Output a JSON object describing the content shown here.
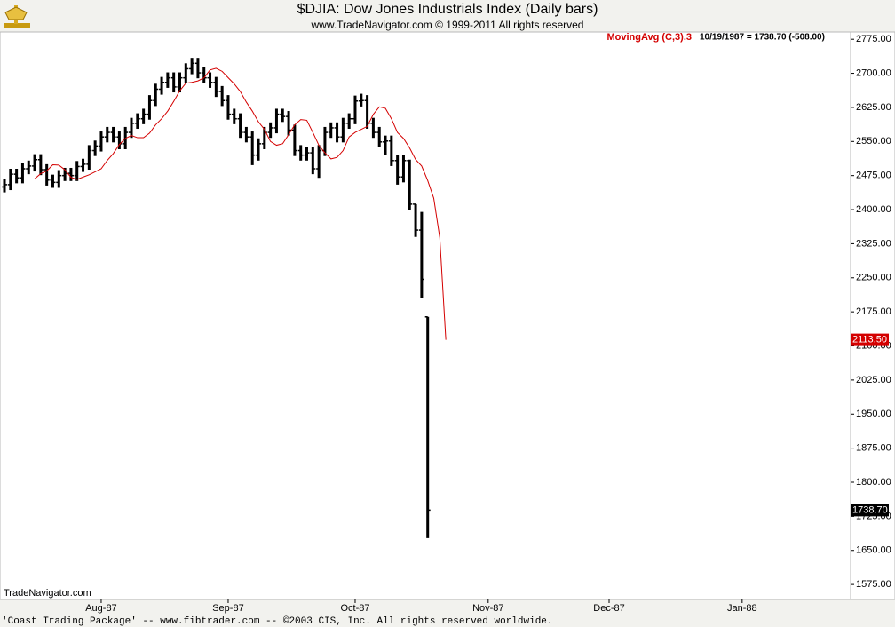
{
  "chart_data": {
    "type": "ohlc",
    "title": "$DJIA:  Dow Jones Industrials Index  (Daily bars)",
    "subtitle": "www.TradeNavigator.com © 1999-2011 All rights reserved",
    "status_text": "10/19/1987 = 1738.70 (-508.00)",
    "watermark": "TradeNavigator.com",
    "footer": "'Coast Trading Package' -- www.fibtrader.com -- ©2003 CIS, Inc. All rights reserved worldwide.",
    "categories": [
      null,
      null,
      null,
      null,
      null,
      null,
      null,
      null,
      null,
      null,
      null,
      null,
      null,
      null,
      null,
      null,
      "Aug-87",
      null,
      null,
      null,
      null,
      null,
      null,
      null,
      null,
      null,
      null,
      null,
      null,
      null,
      null,
      null,
      null,
      null,
      null,
      null,
      null,
      "Sep-87",
      null,
      null,
      null,
      null,
      null,
      null,
      null,
      null,
      null,
      null,
      null,
      null,
      null,
      null,
      null,
      null,
      null,
      null,
      null,
      null,
      "Oct-87",
      null,
      null,
      null,
      null,
      null,
      null,
      null,
      null,
      null,
      null,
      null,
      null,
      null,
      null,
      null,
      null,
      null,
      null,
      null,
      null,
      null,
      "Nov-87",
      null,
      null,
      null,
      null,
      null,
      null,
      null,
      null,
      null,
      null,
      null,
      null,
      null,
      null,
      null,
      null,
      null,
      null,
      null,
      "Dec-87",
      null,
      null,
      null,
      null,
      null,
      null,
      null,
      null,
      null,
      null,
      null,
      null,
      null,
      null,
      null,
      null,
      null,
      null,
      null,
      null,
      null,
      "Jan-88"
    ],
    "ohlc": {
      "color": "#000000",
      "last_label": "1738.70",
      "open": [
        2450,
        2455,
        2478,
        2470,
        2490,
        2496,
        2510,
        2488,
        2465,
        2460,
        2475,
        2480,
        2475,
        2495,
        2500,
        2530,
        2540,
        2560,
        2570,
        2560,
        2545,
        2570,
        2590,
        2600,
        2610,
        2640,
        2665,
        2680,
        2690,
        2670,
        2690,
        2710,
        2722,
        2701,
        2690,
        2680,
        2660,
        2640,
        2610,
        2600,
        2570,
        2560,
        2520,
        2545,
        2570,
        2580,
        2610,
        2605,
        2575,
        2530,
        2520,
        2525,
        2490,
        2530,
        2570,
        2580,
        2560,
        2590,
        2600,
        2639,
        2640,
        2590,
        2570,
        2549,
        2551,
        2508,
        2472,
        2508,
        2412,
        2355,
        2164,
        null,
        null,
        null,
        null,
        null,
        null,
        null,
        null,
        null,
        null,
        null,
        null,
        null,
        null,
        null,
        null,
        null,
        null,
        null,
        null,
        null,
        null,
        null,
        null,
        null,
        null,
        null,
        null,
        null,
        null,
        null,
        null,
        null,
        null,
        null,
        null,
        null,
        null,
        null,
        null,
        null,
        null,
        null,
        null,
        null,
        null,
        null,
        null,
        null,
        null,
        null,
        null
      ],
      "high": [
        2467,
        2490,
        2490,
        2502,
        2508,
        2522,
        2522,
        2500,
        2477,
        2487,
        2492,
        2492,
        2507,
        2512,
        2542,
        2552,
        2572,
        2582,
        2582,
        2572,
        2582,
        2602,
        2612,
        2622,
        2652,
        2677,
        2692,
        2702,
        2702,
        2702,
        2722,
        2734,
        2734,
        2713,
        2702,
        2692,
        2672,
        2652,
        2622,
        2612,
        2582,
        2572,
        2557,
        2582,
        2592,
        2622,
        2622,
        2617,
        2587,
        2542,
        2537,
        2537,
        2542,
        2582,
        2592,
        2592,
        2602,
        2612,
        2651,
        2655,
        2652,
        2602,
        2582,
        2563,
        2563,
        2520,
        2520,
        2510,
        2412,
        2395,
        2164,
        null,
        null,
        null,
        null,
        null,
        null,
        null,
        null,
        null,
        null,
        null,
        null,
        null,
        null,
        null,
        null,
        null,
        null,
        null,
        null,
        null,
        null,
        null,
        null,
        null,
        null,
        null,
        null,
        null,
        null,
        null,
        null,
        null,
        null,
        null,
        null,
        null,
        null,
        null,
        null,
        null,
        null,
        null,
        null,
        null,
        null,
        null,
        null,
        null,
        null,
        null,
        null
      ],
      "low": [
        2438,
        2443,
        2458,
        2458,
        2478,
        2484,
        2476,
        2453,
        2448,
        2448,
        2463,
        2463,
        2463,
        2483,
        2488,
        2518,
        2528,
        2548,
        2548,
        2533,
        2533,
        2558,
        2578,
        2588,
        2598,
        2628,
        2653,
        2668,
        2658,
        2658,
        2678,
        2698,
        2689,
        2678,
        2668,
        2648,
        2628,
        2598,
        2588,
        2558,
        2548,
        2498,
        2508,
        2533,
        2558,
        2568,
        2593,
        2563,
        2518,
        2508,
        2508,
        2478,
        2470,
        2518,
        2558,
        2548,
        2548,
        2578,
        2588,
        2627,
        2578,
        2558,
        2537,
        2520,
        2496,
        2455,
        2460,
        2400,
        2340,
        2205,
        1677,
        null,
        null,
        null,
        null,
        null,
        null,
        null,
        null,
        null,
        null,
        null,
        null,
        null,
        null,
        null,
        null,
        null,
        null,
        null,
        null,
        null,
        null,
        null,
        null,
        null,
        null,
        null,
        null,
        null,
        null,
        null,
        null,
        null,
        null,
        null,
        null,
        null,
        null,
        null,
        null,
        null,
        null,
        null,
        null,
        null,
        null,
        null,
        null,
        null,
        null,
        null,
        null
      ],
      "close": [
        2455,
        2478,
        2470,
        2490,
        2496,
        2510,
        2488,
        2465,
        2460,
        2475,
        2480,
        2475,
        2495,
        2500,
        2530,
        2540,
        2560,
        2570,
        2560,
        2545,
        2570,
        2590,
        2600,
        2610,
        2640,
        2665,
        2680,
        2690,
        2670,
        2690,
        2710,
        2722,
        2701,
        2690,
        2680,
        2660,
        2640,
        2610,
        2600,
        2570,
        2560,
        2520,
        2545,
        2570,
        2580,
        2610,
        2605,
        2575,
        2530,
        2520,
        2525,
        2490,
        2530,
        2570,
        2580,
        2560,
        2590,
        2600,
        2639,
        2640,
        2590,
        2570,
        2549,
        2551,
        2508,
        2472,
        2508,
        2412,
        2355,
        2246.7,
        1738.7,
        null,
        null,
        null,
        null,
        null,
        null,
        null,
        null,
        null,
        null,
        null,
        null,
        null,
        null,
        null,
        null,
        null,
        null,
        null,
        null,
        null,
        null,
        null,
        null,
        null,
        null,
        null,
        null,
        null,
        null,
        null,
        null,
        null,
        null,
        null,
        null,
        null,
        null,
        null,
        null,
        null,
        null,
        null,
        null,
        null,
        null,
        null,
        null,
        null,
        null,
        null,
        null
      ]
    },
    "overlays": [
      {
        "type": "line",
        "name": "MovingAvg (C,3).3",
        "color": "#d40000",
        "last_label": "2113.50",
        "values": [
          null,
          null,
          null,
          null,
          null,
          2467.7,
          2479.3,
          2485.3,
          2498.7,
          2498,
          2487.7,
          2471,
          2466.7,
          2471.7,
          2476.7,
          2483.3,
          2490,
          2508.3,
          2523.3,
          2543.3,
          2556.7,
          2563.3,
          2558.3,
          2558.3,
          2568.3,
          2586.7,
          2600,
          2616.7,
          2638.3,
          2661.7,
          2678.3,
          2680,
          2683.3,
          2690,
          2707.3,
          2711,
          2704.3,
          2690.3,
          2676.7,
          2660,
          2636.7,
          2616.7,
          2593.3,
          2576.7,
          2550,
          2541.7,
          2545,
          2565,
          2586.7,
          2598.3,
          2596.7,
          2570,
          2541.7,
          2525,
          2511.7,
          2515,
          2530,
          2560,
          2570,
          2576.7,
          2583.3,
          2609.7,
          2626.3,
          2623,
          2600,
          2569.7,
          2556.7,
          2536,
          2510.3,
          2496,
          2464,
          2425,
          2337.9,
          2113.5,
          null,
          null,
          null,
          null,
          null,
          null,
          null,
          null,
          null,
          null,
          null,
          null,
          null,
          null,
          null,
          null,
          null,
          null,
          null,
          null,
          null,
          null,
          null,
          null,
          null,
          null,
          null,
          null,
          null,
          null,
          null,
          null,
          null,
          null,
          null,
          null,
          null,
          null,
          null,
          null,
          null,
          null,
          null,
          null,
          null,
          null,
          null,
          null,
          null
        ]
      }
    ],
    "ylim": [
      1542,
      2791
    ],
    "yticks": [
      {
        "value": 2775,
        "label": "2775.00"
      },
      {
        "value": 2700,
        "label": "2700.00"
      },
      {
        "value": 2625,
        "label": "2625.00"
      },
      {
        "value": 2550,
        "label": "2550.00"
      },
      {
        "value": 2475,
        "label": "2475.00"
      },
      {
        "value": 2400,
        "label": "2400.00"
      },
      {
        "value": 2325,
        "label": "2325.00"
      },
      {
        "value": 2250,
        "label": "2250.00"
      },
      {
        "value": 2175,
        "label": "2175.00"
      },
      {
        "value": 2100,
        "label": "2100.00"
      },
      {
        "value": 2025,
        "label": "2025.00"
      },
      {
        "value": 1950,
        "label": "1950.00"
      },
      {
        "value": 1875,
        "label": "1875.00"
      },
      {
        "value": 1800,
        "label": "1800.00"
      },
      {
        "value": 1725,
        "label": "1725.00"
      },
      {
        "value": 1650,
        "label": "1650.00"
      },
      {
        "value": 1575,
        "label": "1575.00"
      }
    ],
    "grid": false
  }
}
